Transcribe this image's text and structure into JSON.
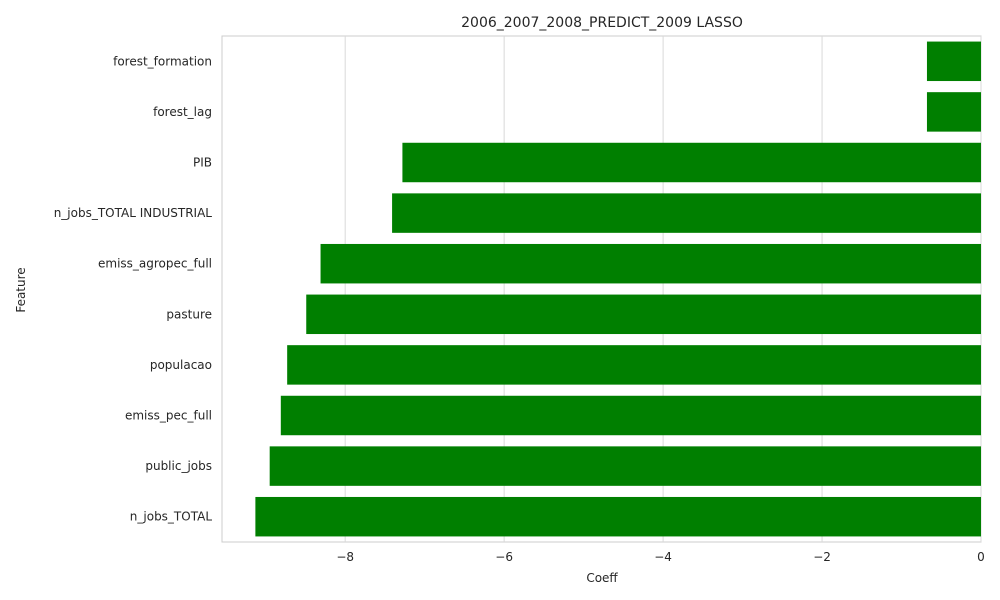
{
  "chart_data": {
    "type": "bar",
    "orientation": "horizontal",
    "title": "2006_2007_2008_PREDICT_2009 LASSO",
    "xlabel": "Coeff",
    "ylabel": "Feature",
    "categories": [
      "forest_formation",
      "forest_lag",
      "PIB",
      "n_jobs_TOTAL INDUSTRIAL",
      "emiss_agropec_full",
      "pasture",
      "populacao",
      "emiss_pec_full",
      "public_jobs",
      "n_jobs_TOTAL"
    ],
    "values": [
      -0.68,
      -0.68,
      -7.28,
      -7.41,
      -8.31,
      -8.49,
      -8.73,
      -8.81,
      -8.95,
      -9.13
    ],
    "xlim": [
      -9.55,
      0
    ],
    "xticks": [
      -8,
      -6,
      -4,
      -2,
      0
    ],
    "xtick_labels": [
      "−8",
      "−6",
      "−4",
      "−2",
      "0"
    ],
    "bar_color": "#007f00",
    "grid": "vertical",
    "legend": "none"
  }
}
